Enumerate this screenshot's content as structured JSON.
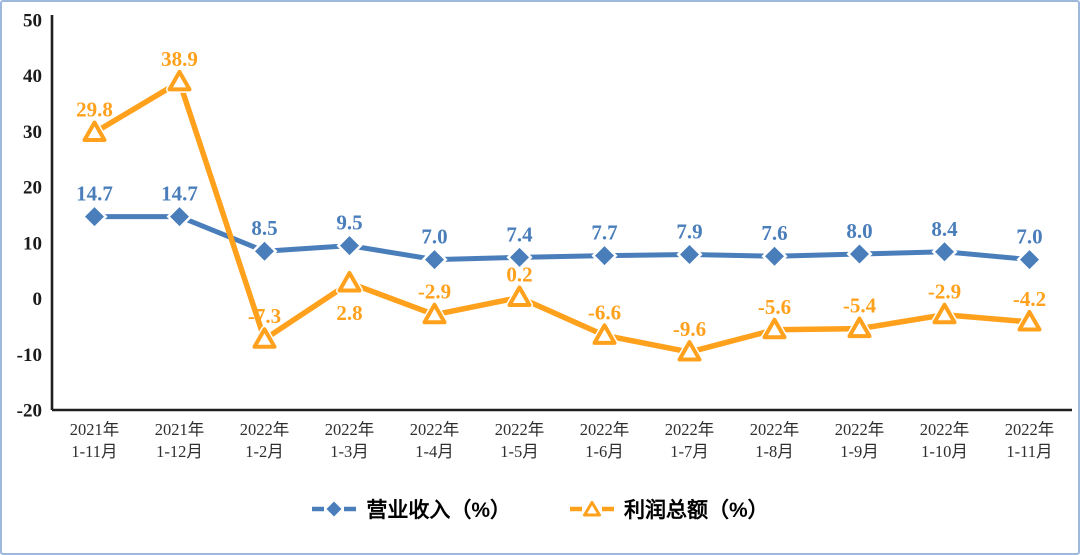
{
  "chart_data": {
    "type": "line",
    "title": "",
    "xlabel": "",
    "ylabel": "",
    "ylim": [
      -20,
      50
    ],
    "y_ticks": [
      50,
      40,
      30,
      20,
      10,
      0,
      -10,
      -20
    ],
    "grid": false,
    "legend_position": "bottom",
    "axis_color": "#1f1f1f",
    "categories": [
      "2021年\n1-11月",
      "2021年\n1-12月",
      "2022年\n1-2月",
      "2022年\n1-3月",
      "2022年\n1-4月",
      "2022年\n1-5月",
      "2022年\n1-6月",
      "2022年\n1-7月",
      "2022年\n1-8月",
      "2022年\n1-9月",
      "2022年\n1-10月",
      "2022年\n1-11月"
    ],
    "series": [
      {
        "name": "营业收入（%）",
        "marker": "diamond",
        "color": "#4A7EBB",
        "values": [
          14.7,
          14.7,
          8.5,
          9.5,
          7.0,
          7.4,
          7.7,
          7.9,
          7.6,
          8.0,
          8.4,
          7.0
        ],
        "labels_below_indices": []
      },
      {
        "name": "利润总额（%）",
        "marker": "triangle",
        "color": "#FFA11C",
        "values": [
          29.8,
          38.9,
          -7.3,
          2.8,
          -2.9,
          0.2,
          -6.6,
          -9.6,
          -5.6,
          -5.4,
          -2.9,
          -4.2
        ],
        "labels_below_indices": [
          3
        ]
      }
    ]
  },
  "frame": {
    "background": "#ffffff",
    "border_color": "#9db8dd"
  }
}
